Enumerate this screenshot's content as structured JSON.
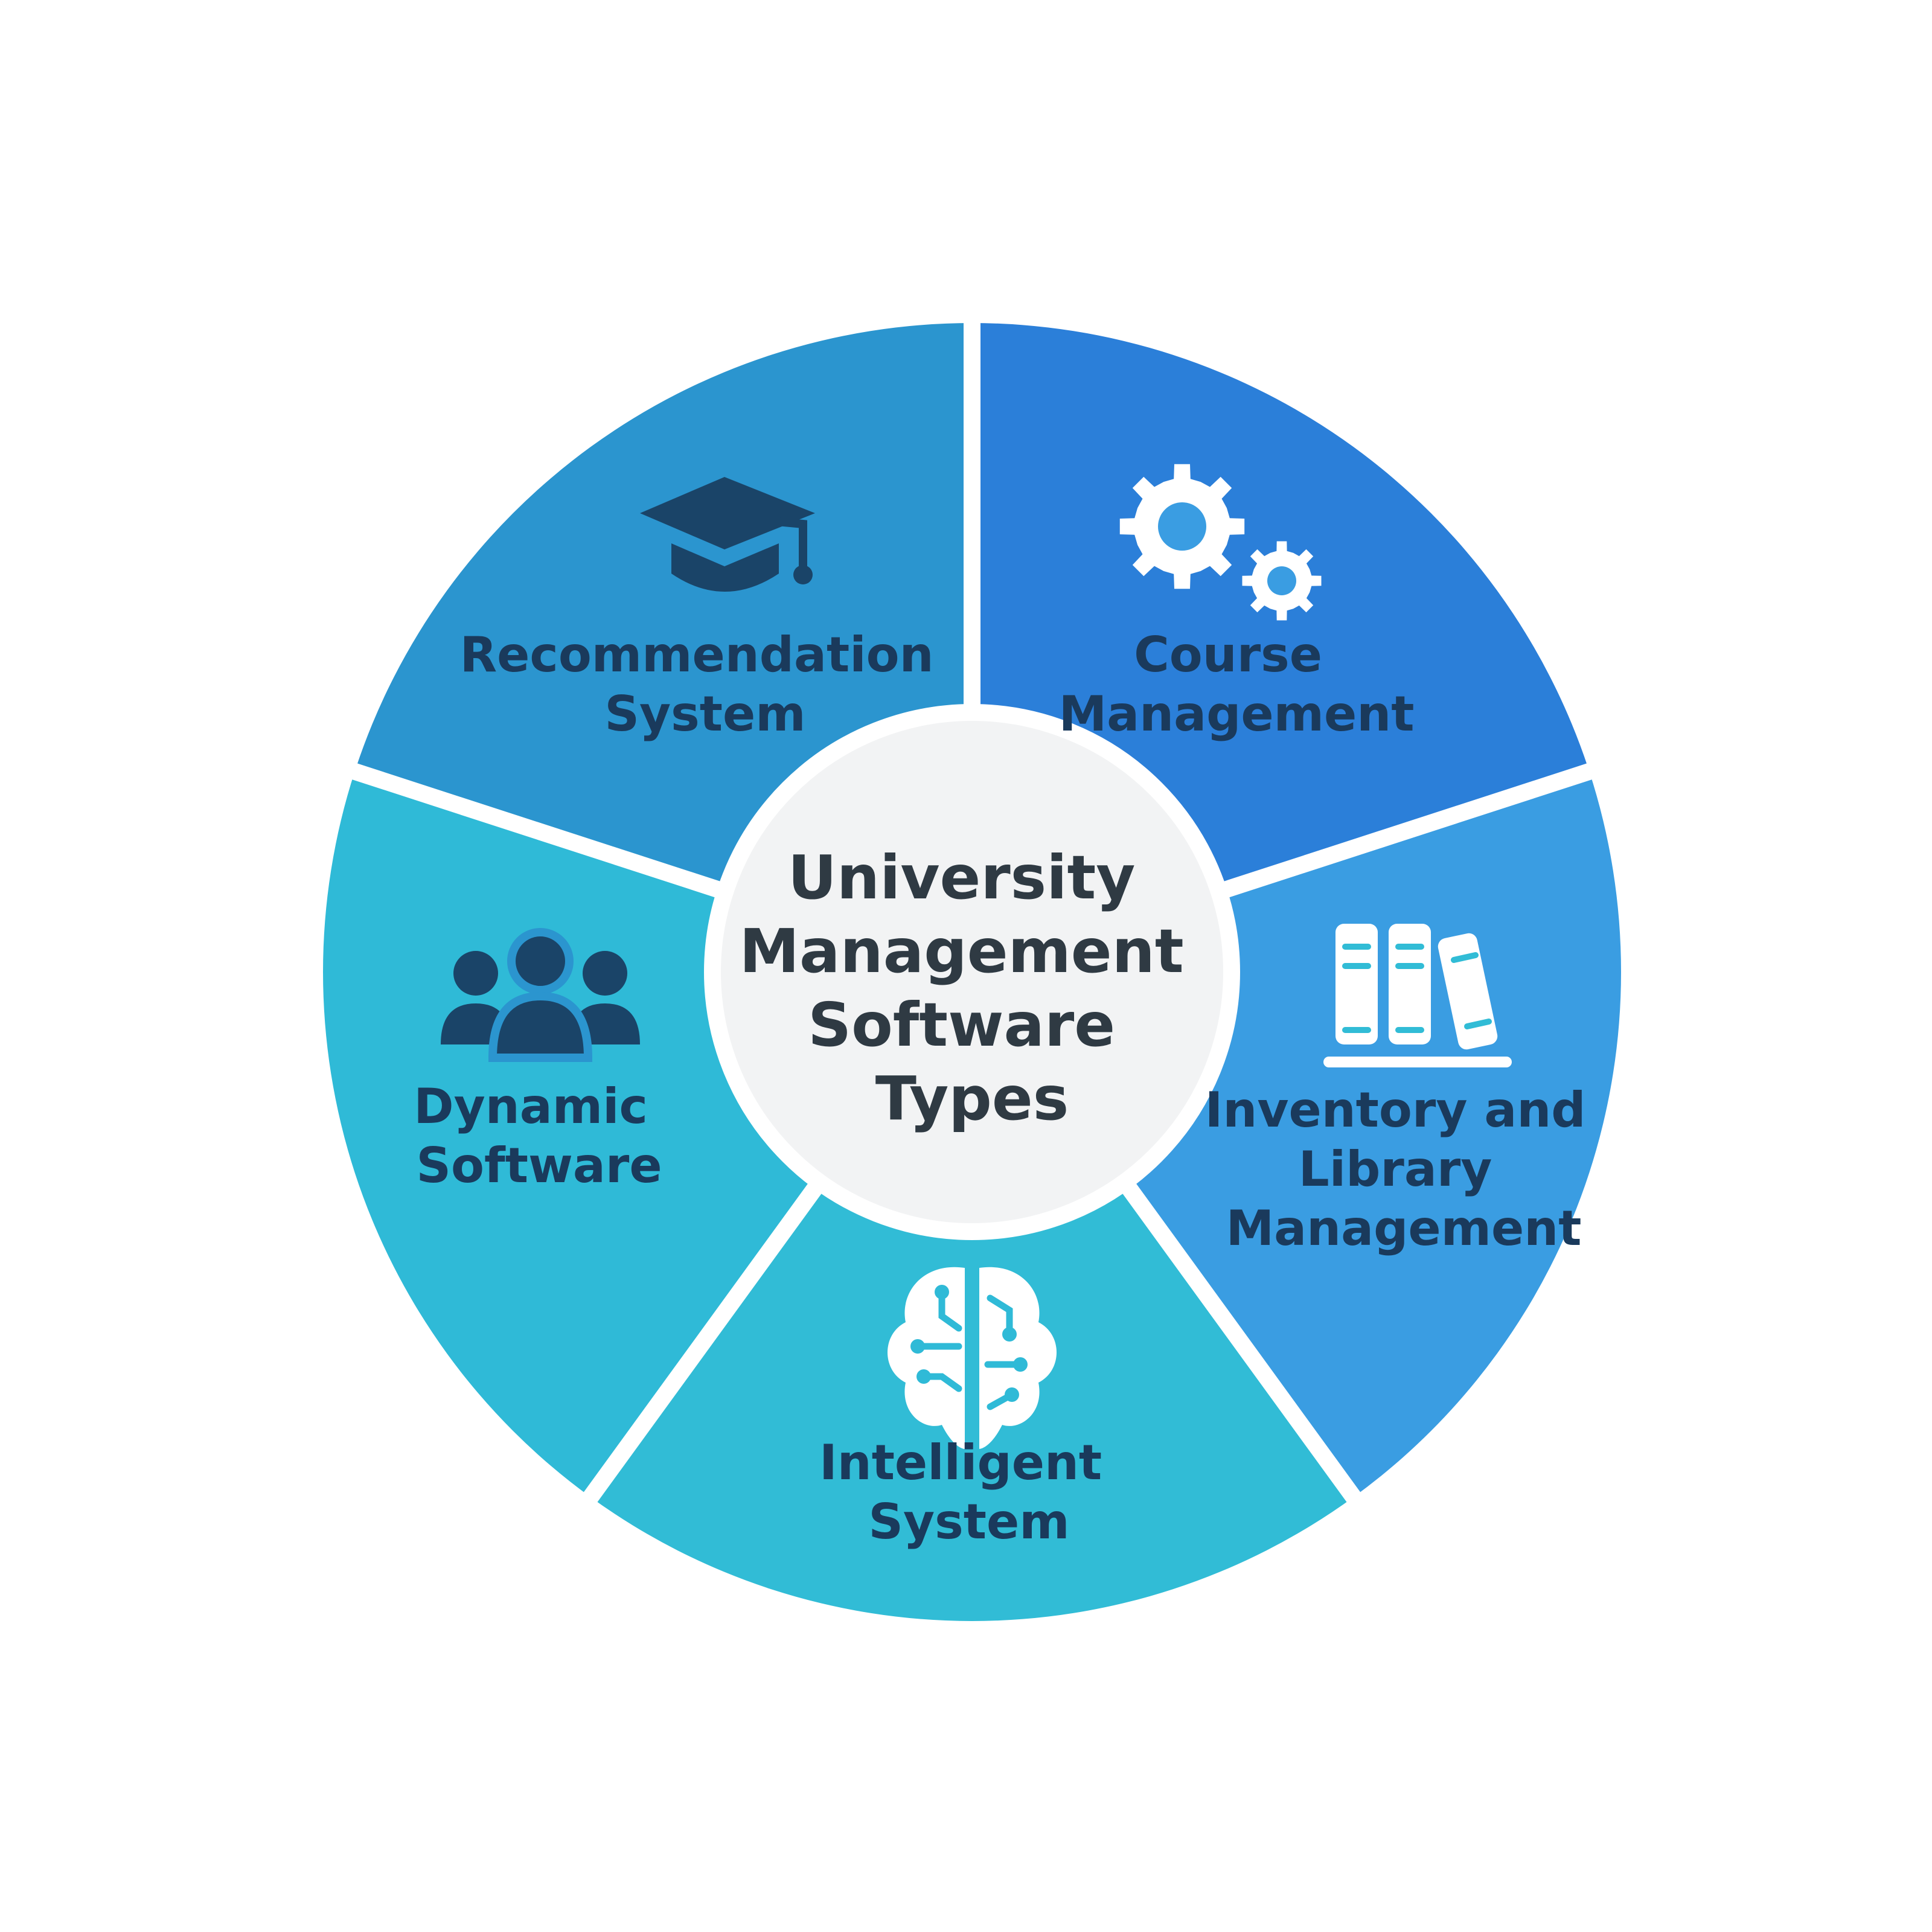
{
  "center": {
    "title_lines": [
      "University",
      "Management",
      "Software",
      "Types"
    ]
  },
  "segments": [
    {
      "key": "recommendation",
      "label_lines": [
        "Recommendation",
        "System"
      ],
      "icon": "graduation-cap-icon",
      "color": "#2B7FD9"
    },
    {
      "key": "course",
      "label_lines": [
        "Course",
        "Management"
      ],
      "icon": "gears-icon",
      "color": "#3A9DE2"
    },
    {
      "key": "inventory",
      "label_lines": [
        "Inventory and",
        "Library",
        "Management"
      ],
      "icon": "books-icon",
      "color": "#31BCD6"
    },
    {
      "key": "intelligent",
      "label_lines": [
        "Intelligent",
        "System"
      ],
      "icon": "brain-icon",
      "color": "#2FBAD7"
    },
    {
      "key": "dynamic",
      "label_lines": [
        "Dynamic",
        "Software"
      ],
      "icon": "people-group-icon",
      "color": "#2B95CF"
    }
  ],
  "colors": {
    "label_text": "#1A3A5C",
    "icon_dark": "#1A4468",
    "icon_light": "#FFFFFF",
    "center_fill": "#F2F3F4",
    "center_text": "#2F3A43",
    "separator": "#FFFFFF"
  }
}
